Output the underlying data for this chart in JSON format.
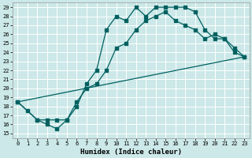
{
  "title": "",
  "xlabel": "Humidex (Indice chaleur)",
  "bg_color": "#cce8e8",
  "grid_color": "#ffffff",
  "line_color": "#006060",
  "xlim": [
    -0.5,
    23.5
  ],
  "ylim": [
    14.5,
    29.5
  ],
  "xticks": [
    0,
    1,
    2,
    3,
    4,
    5,
    6,
    7,
    8,
    9,
    10,
    11,
    12,
    13,
    14,
    15,
    16,
    17,
    18,
    19,
    20,
    21,
    22,
    23
  ],
  "yticks": [
    15,
    16,
    17,
    18,
    19,
    20,
    21,
    22,
    23,
    24,
    25,
    26,
    27,
    28,
    29
  ],
  "line1_x": [
    0,
    1,
    2,
    3,
    4,
    5,
    6,
    7,
    8,
    9,
    10,
    11,
    12,
    13,
    14,
    15,
    16,
    17,
    18,
    19,
    20,
    21,
    22,
    23
  ],
  "line1_y": [
    18.5,
    17.5,
    16.5,
    16.0,
    15.5,
    16.5,
    18.0,
    20.5,
    22.0,
    26.5,
    28.0,
    27.5,
    29.0,
    28.0,
    29.0,
    29.0,
    29.0,
    29.0,
    28.5,
    26.5,
    25.5,
    25.5,
    24.0,
    23.5
  ],
  "line2_x": [
    0,
    2,
    3,
    4,
    5,
    6,
    7,
    8,
    9,
    10,
    11,
    12,
    13,
    14,
    15,
    16,
    17,
    18,
    19,
    20,
    21,
    22,
    23
  ],
  "line2_y": [
    18.5,
    16.5,
    16.5,
    16.5,
    16.5,
    18.5,
    20.0,
    20.5,
    22.0,
    24.5,
    25.0,
    26.5,
    27.5,
    28.0,
    28.5,
    27.5,
    27.0,
    26.5,
    25.5,
    26.0,
    25.5,
    24.5,
    23.5
  ],
  "line3_x": [
    0,
    23
  ],
  "line3_y": [
    18.5,
    23.5
  ],
  "xlabel_fontsize": 6.5,
  "tick_fontsize": 5.0,
  "marker_size": 2.5,
  "line_width": 0.9
}
